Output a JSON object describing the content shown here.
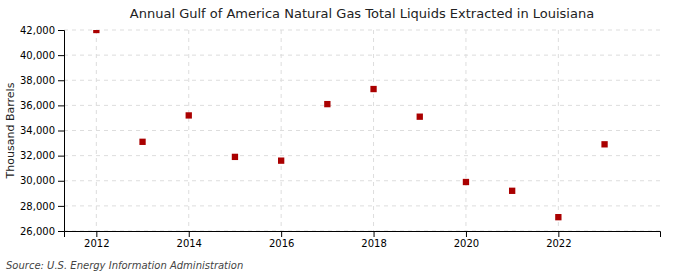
{
  "chart_data": {
    "type": "scatter",
    "title": "Annual Gulf of America Natural Gas Total Liquids Extracted in Louisiana",
    "ylabel": "Thousand Barrels",
    "annotations": [
      "Source: U.S. Energy Information Administration"
    ],
    "x": [
      2012,
      2013,
      2014,
      2015,
      2016,
      2017,
      2018,
      2019,
      2020,
      2021,
      2022,
      2023
    ],
    "values": [
      42000,
      33100,
      35200,
      31900,
      31600,
      36100,
      37300,
      35100,
      29900,
      29200,
      27100,
      32900
    ],
    "color": "#aa0000",
    "marker": "square",
    "xlim": [
      2011.3,
      2024.2
    ],
    "xticks": [
      2012,
      2014,
      2016,
      2018,
      2020,
      2022
    ],
    "ylim": [
      26000,
      42000
    ],
    "yticks": [
      {
        "value": 26000,
        "label": "26,000"
      },
      {
        "value": 28000,
        "label": "28,000"
      },
      {
        "value": 30000,
        "label": "30,000"
      },
      {
        "value": 32000,
        "label": "32,000"
      },
      {
        "value": 34000,
        "label": "34,000"
      },
      {
        "value": 36000,
        "label": "36,000"
      },
      {
        "value": 38000,
        "label": "38,000"
      },
      {
        "value": 40000,
        "label": "40,000"
      },
      {
        "value": 42000,
        "label": "42,000"
      }
    ],
    "grid": true
  }
}
